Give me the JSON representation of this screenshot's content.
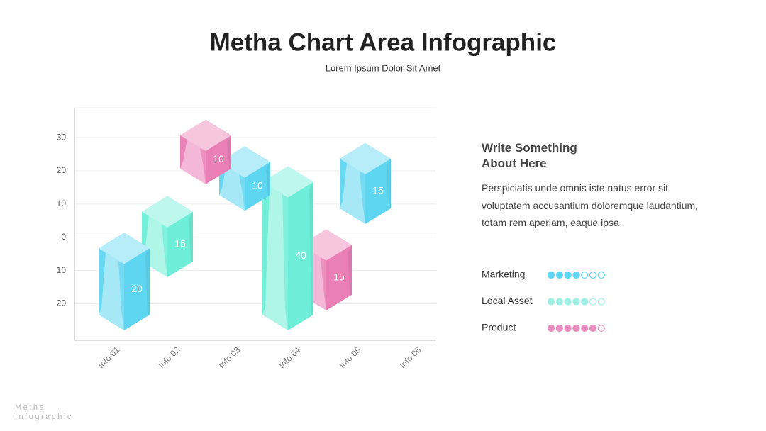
{
  "chart_data": {
    "type": "floating-box",
    "title": "Metha Chart Area Infographic",
    "subtitle": "Lorem Ipsum Dolor Sit Amet",
    "categories": [
      "Info 01",
      "Info 02",
      "Info 03",
      "Info 04",
      "Info 05",
      "Info 06"
    ],
    "series": [
      {
        "color": "#5fd6f1",
        "values": [
          20,
          null,
          10,
          null,
          15,
          null
        ],
        "bases": [
          -28,
          null,
          8,
          null,
          4,
          null
        ]
      },
      {
        "color": "#6eeed8",
        "values": [
          null,
          15,
          null,
          40,
          null,
          null
        ],
        "bases": [
          null,
          -12,
          null,
          -28,
          null,
          null
        ]
      },
      {
        "color": "#ea7fb6",
        "values": [
          null,
          10,
          null,
          15,
          null,
          null
        ],
        "bases": [
          null,
          16,
          null,
          -22,
          null,
          null
        ]
      }
    ],
    "ylim": [
      -31,
      39
    ],
    "yticks": [
      30,
      20,
      10,
      0,
      {
        "value": -10,
        "label": "10"
      },
      {
        "value": -20,
        "label": "20"
      }
    ],
    "grid": true
  },
  "side": {
    "heading": "Write Something About Here",
    "text": "Perspiciatis unde omnis iste natus error sit voluptatem accusantium doloremque laudantium, totam rem aperiam, eaque ipsa",
    "ratings": [
      {
        "label": "Marketing",
        "value": 4,
        "max": 7,
        "color": "#5fd6f1"
      },
      {
        "label": "Local Asset",
        "value": 5,
        "max": 7,
        "color": "#9ff0e2"
      },
      {
        "label": "Product",
        "value": 6,
        "max": 7,
        "color": "#ea8fc0"
      }
    ]
  },
  "footer": [
    "Metha",
    "Infographic"
  ]
}
